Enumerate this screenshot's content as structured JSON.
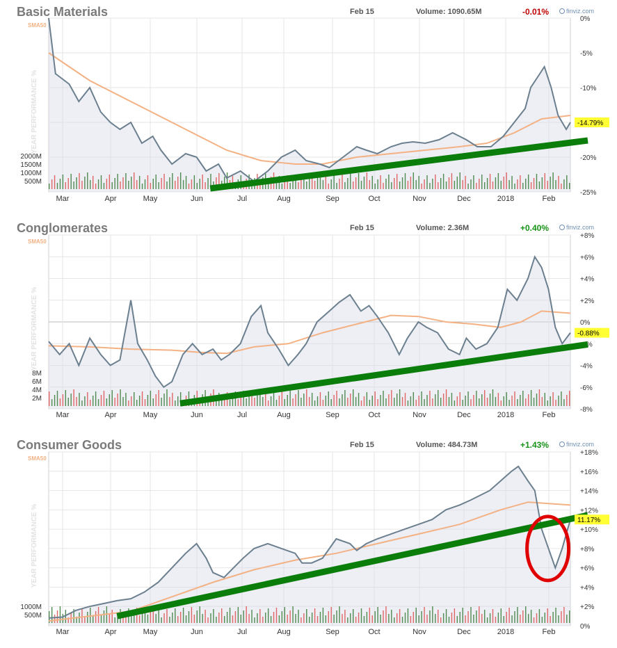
{
  "colors": {
    "price_line": "#6b7f8e",
    "sma_line": "#f4b183",
    "trend_line": "#0a7d0a",
    "volume_up": "#4f8a4f",
    "volume_down": "#e06666",
    "highlight": "#ffff33",
    "circle": "#e00000",
    "grid": "#e6e6e6",
    "fill": "#d8dbe8",
    "positive": "#169216",
    "negative": "#c00000"
  },
  "chart_data": [
    {
      "type": "line",
      "title": "Basic Materials",
      "date": "Feb 15",
      "volume": "Volume: 1090.65M",
      "change": "-0.01%",
      "change_dir": "negative",
      "sma_label": "SMA50",
      "watermark": "finviz.com",
      "ylabel": "YEAR PERFORMANCE %",
      "x_labels": [
        "Mar",
        "Apr",
        "May",
        "Jun",
        "Jul",
        "Aug",
        "Sep",
        "Oct",
        "Nov",
        "Dec",
        "2018",
        "Feb"
      ],
      "y_ticks": [
        "0%",
        "-5%",
        "-10%",
        "-15%",
        "-20%",
        "-25%"
      ],
      "ylim": [
        -25,
        0
      ],
      "vol_ticks": [
        "2000M",
        "1500M",
        "1000M",
        "500M"
      ],
      "last_label": "-14.79%",
      "price_points": [
        [
          0,
          0
        ],
        [
          5,
          -8
        ],
        [
          15,
          -9.5
        ],
        [
          22,
          -12
        ],
        [
          30,
          -10
        ],
        [
          38,
          -13.5
        ],
        [
          45,
          -15
        ],
        [
          52,
          -16
        ],
        [
          60,
          -15
        ],
        [
          68,
          -18
        ],
        [
          76,
          -17
        ],
        [
          82,
          -19
        ],
        [
          90,
          -21
        ],
        [
          100,
          -19.5
        ],
        [
          108,
          -20
        ],
        [
          115,
          -22
        ],
        [
          124,
          -21
        ],
        [
          130,
          -23
        ],
        [
          140,
          -22
        ],
        [
          150,
          -23.5
        ],
        [
          160,
          -22
        ],
        [
          170,
          -20
        ],
        [
          180,
          -19
        ],
        [
          188,
          -20.5
        ],
        [
          198,
          -21
        ],
        [
          205,
          -21.5
        ],
        [
          215,
          -20
        ],
        [
          225,
          -18.5
        ],
        [
          232,
          -19
        ],
        [
          240,
          -19.5
        ],
        [
          250,
          -18.5
        ],
        [
          258,
          -18
        ],
        [
          266,
          -17.8
        ],
        [
          275,
          -18
        ],
        [
          285,
          -17.5
        ],
        [
          295,
          -16.5
        ],
        [
          305,
          -17.5
        ],
        [
          313,
          -18.5
        ],
        [
          323,
          -18.5
        ],
        [
          332,
          -17
        ],
        [
          340,
          -15
        ],
        [
          348,
          -13
        ],
        [
          352,
          -10
        ],
        [
          357,
          -8.5
        ],
        [
          362,
          -7
        ],
        [
          367,
          -10
        ],
        [
          372,
          -14
        ],
        [
          378,
          -16
        ],
        [
          381,
          -15
        ]
      ],
      "sma_points": [
        [
          0,
          -5
        ],
        [
          30,
          -9
        ],
        [
          60,
          -12
        ],
        [
          90,
          -15
        ],
        [
          110,
          -17
        ],
        [
          130,
          -19
        ],
        [
          155,
          -20.5
        ],
        [
          180,
          -21
        ],
        [
          200,
          -21
        ],
        [
          225,
          -20
        ],
        [
          250,
          -19.5
        ],
        [
          275,
          -19
        ],
        [
          300,
          -18.5
        ],
        [
          320,
          -18
        ],
        [
          340,
          -16.5
        ],
        [
          360,
          -14.5
        ],
        [
          381,
          -14
        ]
      ],
      "trend": [
        [
          118,
          -24.5
        ],
        [
          381,
          -17.8
        ]
      ],
      "circle": null
    },
    {
      "type": "line",
      "title": "Conglomerates",
      "date": "Feb 15",
      "volume": "Volume: 2.36M",
      "change": "+0.40%",
      "change_dir": "positive",
      "sma_label": "SMA50",
      "watermark": "finviz.com",
      "ylabel": "YEAR PERFORMANCE %",
      "x_labels": [
        "Mar",
        "Apr",
        "May",
        "Jun",
        "Jul",
        "Aug",
        "Sep",
        "Oct",
        "Nov",
        "Dec",
        "2018",
        "Feb"
      ],
      "y_ticks": [
        "+8%",
        "+6%",
        "+4%",
        "+2%",
        "0%",
        "-2%",
        "-4%",
        "-6%",
        "-8%"
      ],
      "ylim": [
        -8,
        8
      ],
      "vol_ticks": [
        "8M",
        "6M",
        "4M",
        "2M"
      ],
      "last_label": "-0.88%",
      "price_points": [
        [
          0,
          -1.8
        ],
        [
          8,
          -3
        ],
        [
          15,
          -2
        ],
        [
          22,
          -4
        ],
        [
          30,
          -1.5
        ],
        [
          38,
          -3
        ],
        [
          45,
          -4
        ],
        [
          52,
          -3.5
        ],
        [
          60,
          2
        ],
        [
          65,
          -2
        ],
        [
          72,
          -3.5
        ],
        [
          78,
          -5
        ],
        [
          84,
          -6
        ],
        [
          90,
          -5.5
        ],
        [
          98,
          -3
        ],
        [
          105,
          -2
        ],
        [
          112,
          -3
        ],
        [
          120,
          -2.5
        ],
        [
          126,
          -3.5
        ],
        [
          132,
          -3
        ],
        [
          140,
          -2
        ],
        [
          148,
          0.5
        ],
        [
          155,
          1.5
        ],
        [
          160,
          -1
        ],
        [
          168,
          -2.5
        ],
        [
          175,
          -4
        ],
        [
          182,
          -3
        ],
        [
          188,
          -2
        ],
        [
          196,
          0
        ],
        [
          205,
          1
        ],
        [
          212,
          1.8
        ],
        [
          220,
          2.5
        ],
        [
          228,
          1
        ],
        [
          234,
          1.5
        ],
        [
          240,
          0.5
        ],
        [
          248,
          -1
        ],
        [
          256,
          -3
        ],
        [
          262,
          -1.5
        ],
        [
          270,
          0
        ],
        [
          276,
          -0.5
        ],
        [
          284,
          -1
        ],
        [
          292,
          -2.5
        ],
        [
          300,
          -3
        ],
        [
          305,
          -1.5
        ],
        [
          312,
          -2.5
        ],
        [
          320,
          -2
        ],
        [
          328,
          -0.5
        ],
        [
          335,
          3
        ],
        [
          342,
          2
        ],
        [
          350,
          4
        ],
        [
          355,
          6
        ],
        [
          360,
          5
        ],
        [
          365,
          3
        ],
        [
          370,
          -0.5
        ],
        [
          375,
          -2
        ],
        [
          381,
          -1
        ]
      ],
      "sma_points": [
        [
          0,
          -2.2
        ],
        [
          30,
          -2.3
        ],
        [
          60,
          -2.5
        ],
        [
          90,
          -2.6
        ],
        [
          110,
          -2.8
        ],
        [
          130,
          -2.9
        ],
        [
          150,
          -2.3
        ],
        [
          175,
          -2
        ],
        [
          200,
          -1
        ],
        [
          225,
          -0.2
        ],
        [
          250,
          0.6
        ],
        [
          270,
          0.5
        ],
        [
          290,
          0
        ],
        [
          310,
          -0.2
        ],
        [
          330,
          -0.5
        ],
        [
          345,
          0
        ],
        [
          360,
          1
        ],
        [
          381,
          0.8
        ]
      ],
      "trend": [
        [
          96,
          -7.5
        ],
        [
          381,
          -2.2
        ]
      ],
      "circle": null
    },
    {
      "type": "line",
      "title": "Consumer Goods",
      "date": "Feb 15",
      "volume": "Volume: 484.73M",
      "change": "+1.43%",
      "change_dir": "positive",
      "sma_label": "SMA50",
      "watermark": "finviz.com",
      "ylabel": "YEAR PERFORMANCE %",
      "x_labels": [
        "Mar",
        "Apr",
        "May",
        "Jun",
        "Jul",
        "Aug",
        "Sep",
        "Oct",
        "Nov",
        "Dec",
        "2018",
        "Feb"
      ],
      "y_ticks": [
        "+18%",
        "+16%",
        "+14%",
        "+12%",
        "+10%",
        "+8%",
        "+6%",
        "+4%",
        "+2%",
        "0%"
      ],
      "ylim": [
        0,
        18
      ],
      "vol_ticks": [
        "1000M",
        "500M"
      ],
      "last_label": "11.17%",
      "price_points": [
        [
          0,
          0.8
        ],
        [
          10,
          0.9
        ],
        [
          20,
          1.6
        ],
        [
          30,
          2
        ],
        [
          40,
          2.3
        ],
        [
          50,
          2.6
        ],
        [
          60,
          2.8
        ],
        [
          70,
          3.5
        ],
        [
          80,
          4.5
        ],
        [
          90,
          6
        ],
        [
          100,
          7.5
        ],
        [
          108,
          8.5
        ],
        [
          115,
          7
        ],
        [
          120,
          5.5
        ],
        [
          128,
          5
        ],
        [
          135,
          6
        ],
        [
          142,
          7
        ],
        [
          150,
          8
        ],
        [
          160,
          8.5
        ],
        [
          170,
          8
        ],
        [
          180,
          7.5
        ],
        [
          185,
          6.5
        ],
        [
          192,
          6.5
        ],
        [
          200,
          7
        ],
        [
          210,
          9
        ],
        [
          220,
          8.5
        ],
        [
          225,
          7.8
        ],
        [
          232,
          8.5
        ],
        [
          240,
          9
        ],
        [
          250,
          9.5
        ],
        [
          260,
          10
        ],
        [
          270,
          10.5
        ],
        [
          280,
          11
        ],
        [
          290,
          12
        ],
        [
          300,
          12.5
        ],
        [
          308,
          13
        ],
        [
          315,
          13.5
        ],
        [
          322,
          14
        ],
        [
          330,
          15
        ],
        [
          338,
          16
        ],
        [
          343,
          16.5
        ],
        [
          350,
          15
        ],
        [
          355,
          14
        ],
        [
          360,
          10
        ],
        [
          365,
          8
        ],
        [
          370,
          6
        ],
        [
          375,
          8
        ],
        [
          381,
          11
        ]
      ],
      "sma_points": [
        [
          0,
          0.5
        ],
        [
          30,
          1
        ],
        [
          60,
          1.5
        ],
        [
          90,
          3
        ],
        [
          120,
          4.5
        ],
        [
          150,
          5.8
        ],
        [
          180,
          6.8
        ],
        [
          210,
          7.5
        ],
        [
          240,
          8.5
        ],
        [
          270,
          9.5
        ],
        [
          300,
          10.5
        ],
        [
          330,
          12
        ],
        [
          350,
          12.8
        ],
        [
          381,
          12.5
        ]
      ],
      "trend": [
        [
          50,
          1
        ],
        [
          381,
          11.3
        ]
      ],
      "circle": [
        362,
        8
      ]
    }
  ]
}
